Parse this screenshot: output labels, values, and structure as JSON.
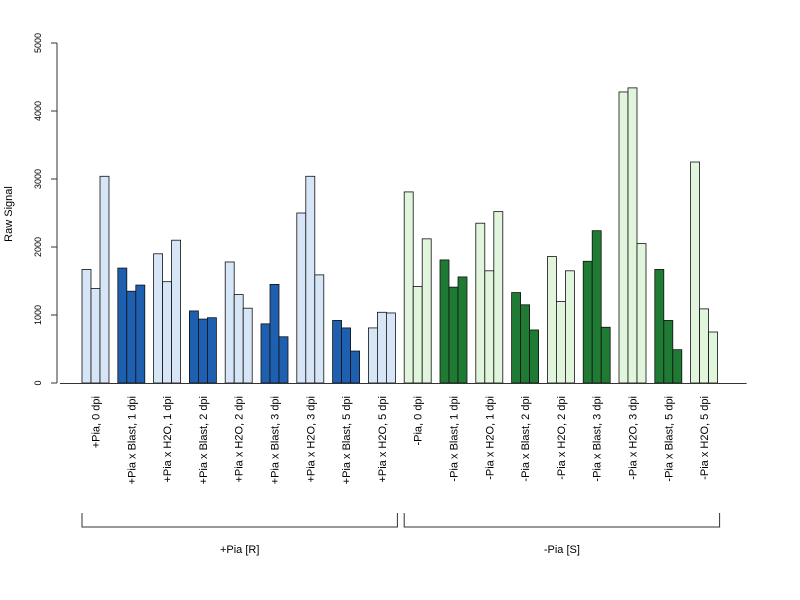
{
  "chart_data": {
    "type": "bar",
    "ylabel": "Raw Signal",
    "xlabel": "",
    "ylim": [
      0,
      5000
    ],
    "yticks": [
      0,
      1000,
      2000,
      3000,
      4000,
      5000
    ],
    "grid": false,
    "legend": "none",
    "categories": [
      "+Pia, 0 dpi",
      "+Pia x Blast, 1 dpi",
      "+Pia x H2O, 1 dpi",
      "+Pia x Blast, 2 dpi",
      "+Pia x H2O, 2 dpi",
      "+Pia x Blast, 3 dpi",
      "+Pia x H2O, 3 dpi",
      "+Pia x Blast, 5 dpi",
      "+Pia x H2O, 5 dpi",
      "-Pia, 0 dpi",
      "-Pia x Blast, 1 dpi",
      "-Pia x H2O, 1 dpi",
      "-Pia x Blast, 2 dpi",
      "-Pia x H2O, 2 dpi",
      "-Pia x Blast, 3 dpi",
      "-Pia x H2O, 3 dpi",
      "-Pia x Blast, 5 dpi",
      "-Pia x H2O, 5 dpi"
    ],
    "replicates": [
      [
        1670,
        1390,
        3040
      ],
      [
        1690,
        1350,
        1440
      ],
      [
        1900,
        1490,
        2100
      ],
      [
        1060,
        940,
        960
      ],
      [
        1780,
        1300,
        1100
      ],
      [
        870,
        1450,
        680
      ],
      [
        2500,
        3040,
        1590
      ],
      [
        920,
        810,
        470
      ],
      [
        810,
        1040,
        1030
      ],
      [
        2810,
        1420,
        2120
      ],
      [
        1810,
        1410,
        1560
      ],
      [
        2350,
        1650,
        2520
      ],
      [
        1330,
        1150,
        780
      ],
      [
        1860,
        1200,
        1650
      ],
      [
        1790,
        2240,
        820
      ],
      [
        4280,
        4340,
        2050
      ],
      [
        1670,
        920,
        490
      ],
      [
        3250,
        1090,
        750
      ]
    ],
    "colors": [
      "#d6e6f6",
      "#1f5fb0",
      "#e1f4dc",
      "#1f7a33"
    ],
    "groups": [
      {
        "label": "+Pia [R]",
        "start": 0,
        "end": 8
      },
      {
        "label": "-Pia [S]",
        "start": 9,
        "end": 17
      }
    ]
  }
}
